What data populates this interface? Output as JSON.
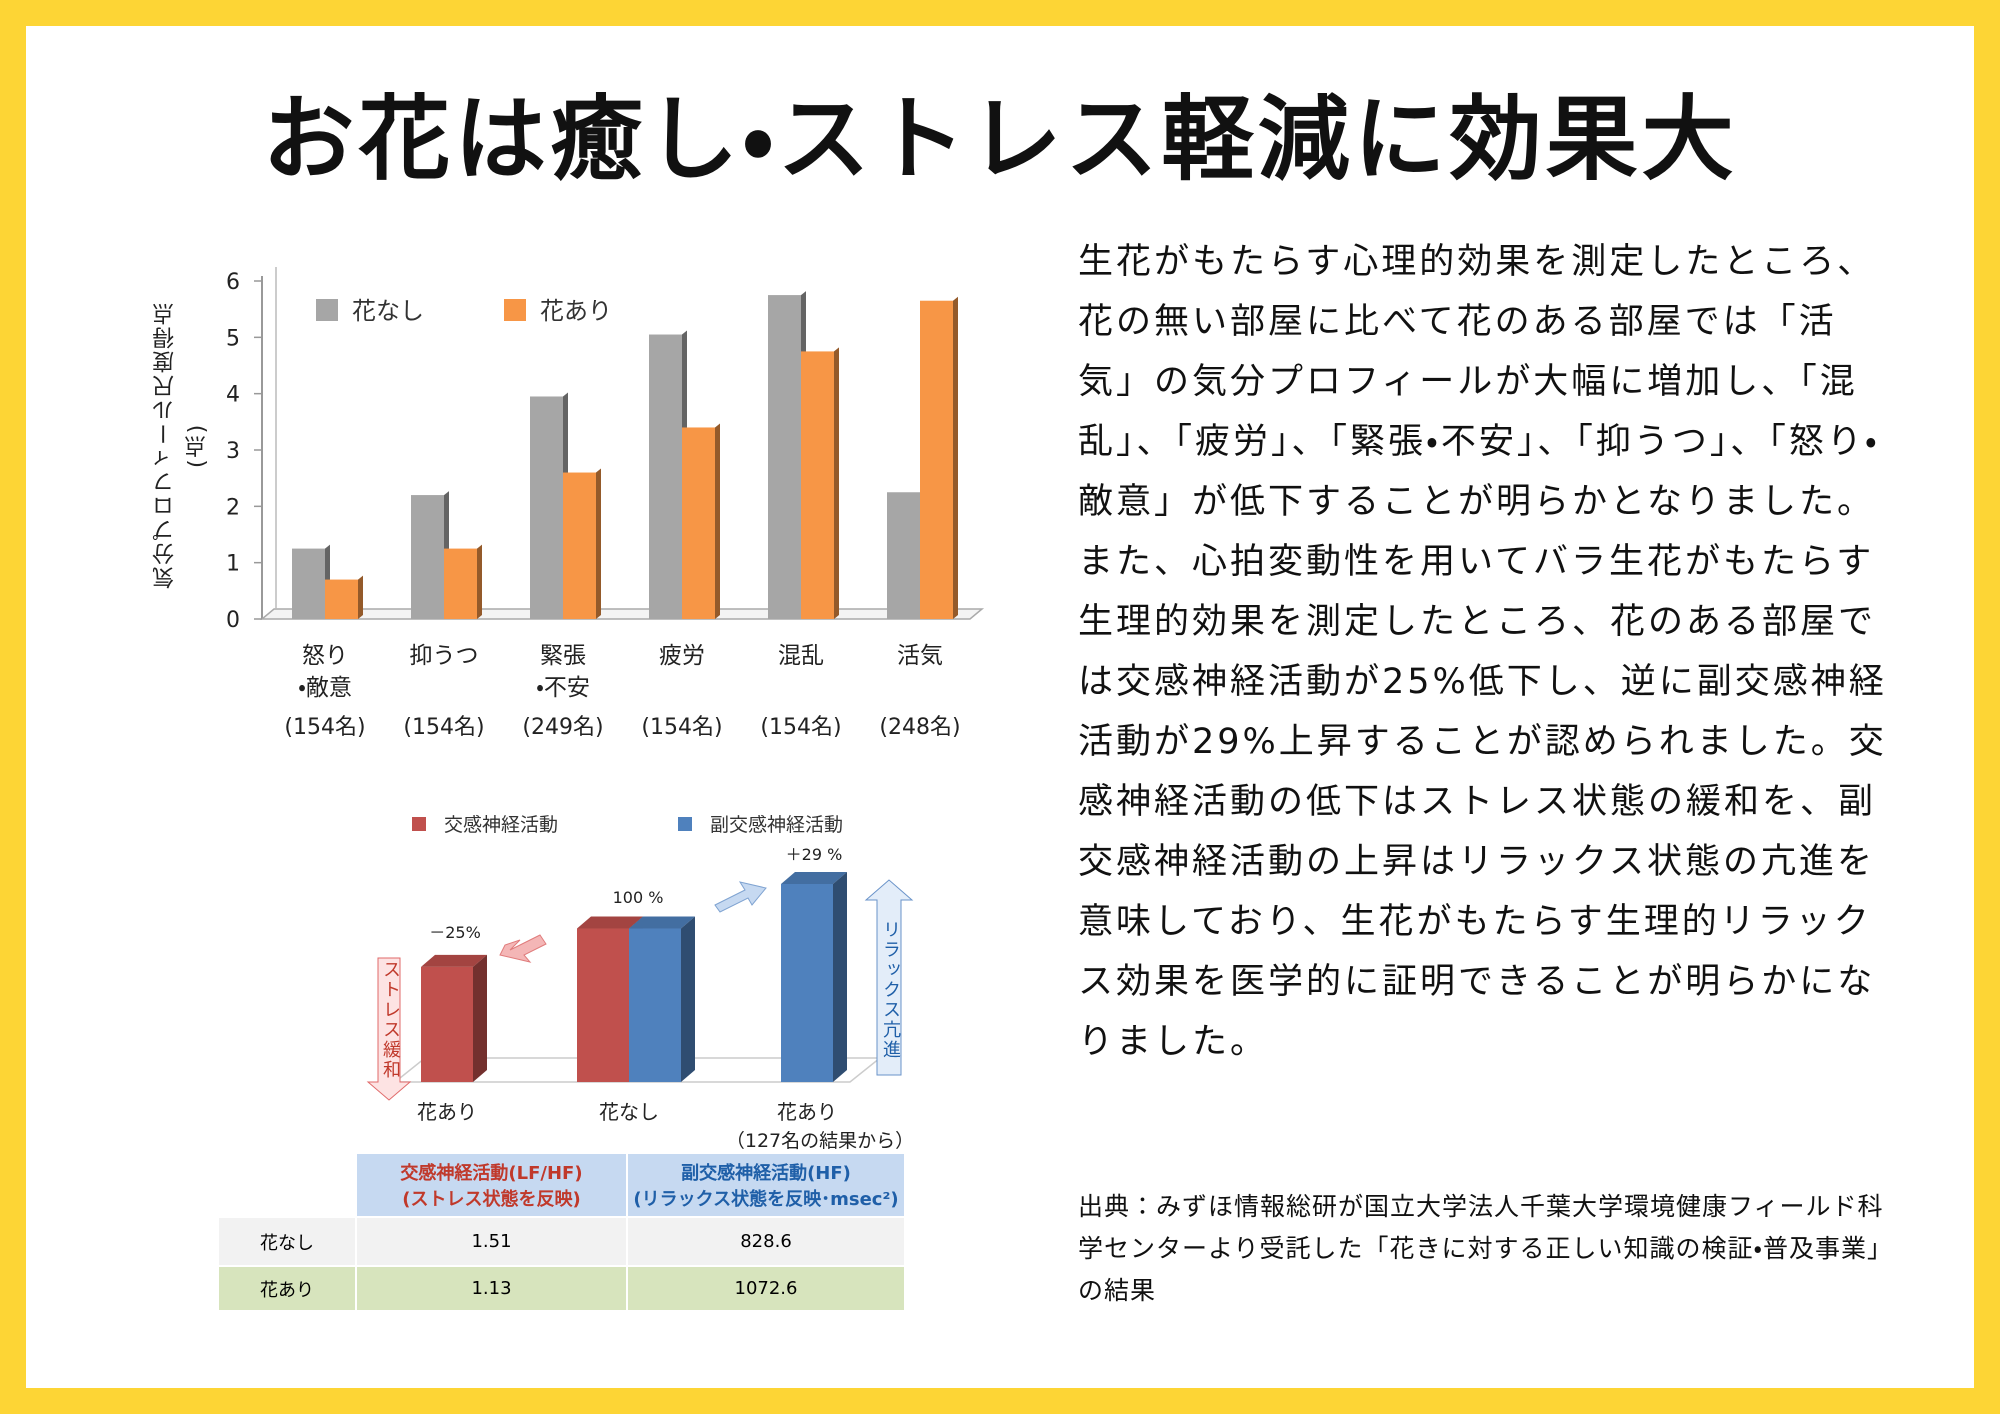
{
  "title": "お花は癒し・ストレス軽減に効果大",
  "body": [
    "生花がもたらす心理的効果を測定したところ、花の無い部屋に比べて花のある部屋では「活気」の気分プロフィールが大幅に増加し、「混乱」、「疲労」、「緊張・不安」、「抑うつ」、「怒り・敵意」が低下することが明らかとなりました。",
    "また、心拍変動性を用いてバラ生花がもたらす生理的効果を測定したところ、花のある部屋では交感神経活動が25%低下し、逆に副交感神経活動が29%上昇することが認められました。交感神経活動の低下はストレス状態の緩和を、副交感神経活動の上昇はリラックス状態の亢進を意味しており、生花がもたらす生理的リラックス効果を医学的に証明できることが明らかになりました。"
  ],
  "source": "出典：みずほ情報総研が国立大学法人千葉大学環境健康フィールド科学センターより受託した「花きに対する正しい知識の検証・普及事業」の結果",
  "chart_data": [
    {
      "type": "bar",
      "ylabel": "気分プロフィール尺度得点\n(点)",
      "categories": [
        "怒り\n・敵意",
        "抑うつ",
        "緊張\n・不安",
        "疲労",
        "混乱",
        "活気"
      ],
      "counts": [
        "(154名)",
        "(154名)",
        "(249名)",
        "(154名)",
        "(154名)",
        "(248名)"
      ],
      "series": [
        {
          "name": "花なし",
          "color": "#a6a6a6",
          "values": [
            1.25,
            2.2,
            3.95,
            5.05,
            5.75,
            2.25
          ]
        },
        {
          "name": "花あり",
          "color": "#f79646",
          "values": [
            0.7,
            1.25,
            2.6,
            3.4,
            4.75,
            5.65
          ]
        }
      ],
      "ylim": [
        0,
        6
      ],
      "yticks": [
        0,
        1,
        2,
        3,
        4,
        5,
        6
      ]
    },
    {
      "type": "bar3d",
      "categories": [
        "花あり",
        "花なし",
        "花あり"
      ],
      "note": "（127名の結果から）",
      "series": [
        {
          "name": "交感神経活動",
          "color": "#c0504d",
          "values": [
            75,
            100,
            null
          ]
        },
        {
          "name": "副交感神経活動",
          "color": "#4f81bd",
          "values": [
            null,
            100,
            129
          ]
        }
      ],
      "annotations": [
        "－25%",
        "100 %",
        "＋29 %"
      ],
      "side_labels": [
        "ストレス緩和",
        "リラックス亢進"
      ]
    }
  ],
  "table": {
    "headers": [
      "交感神経活動(LF/HF)\n(ストレス状態を反映)",
      "副交感神経活動(HF)\n(リラックス状態を反映･msec²)"
    ],
    "rows": [
      [
        "花なし",
        "1.51",
        "828.6"
      ],
      [
        "花あり",
        "1.13",
        "1072.6"
      ]
    ]
  }
}
